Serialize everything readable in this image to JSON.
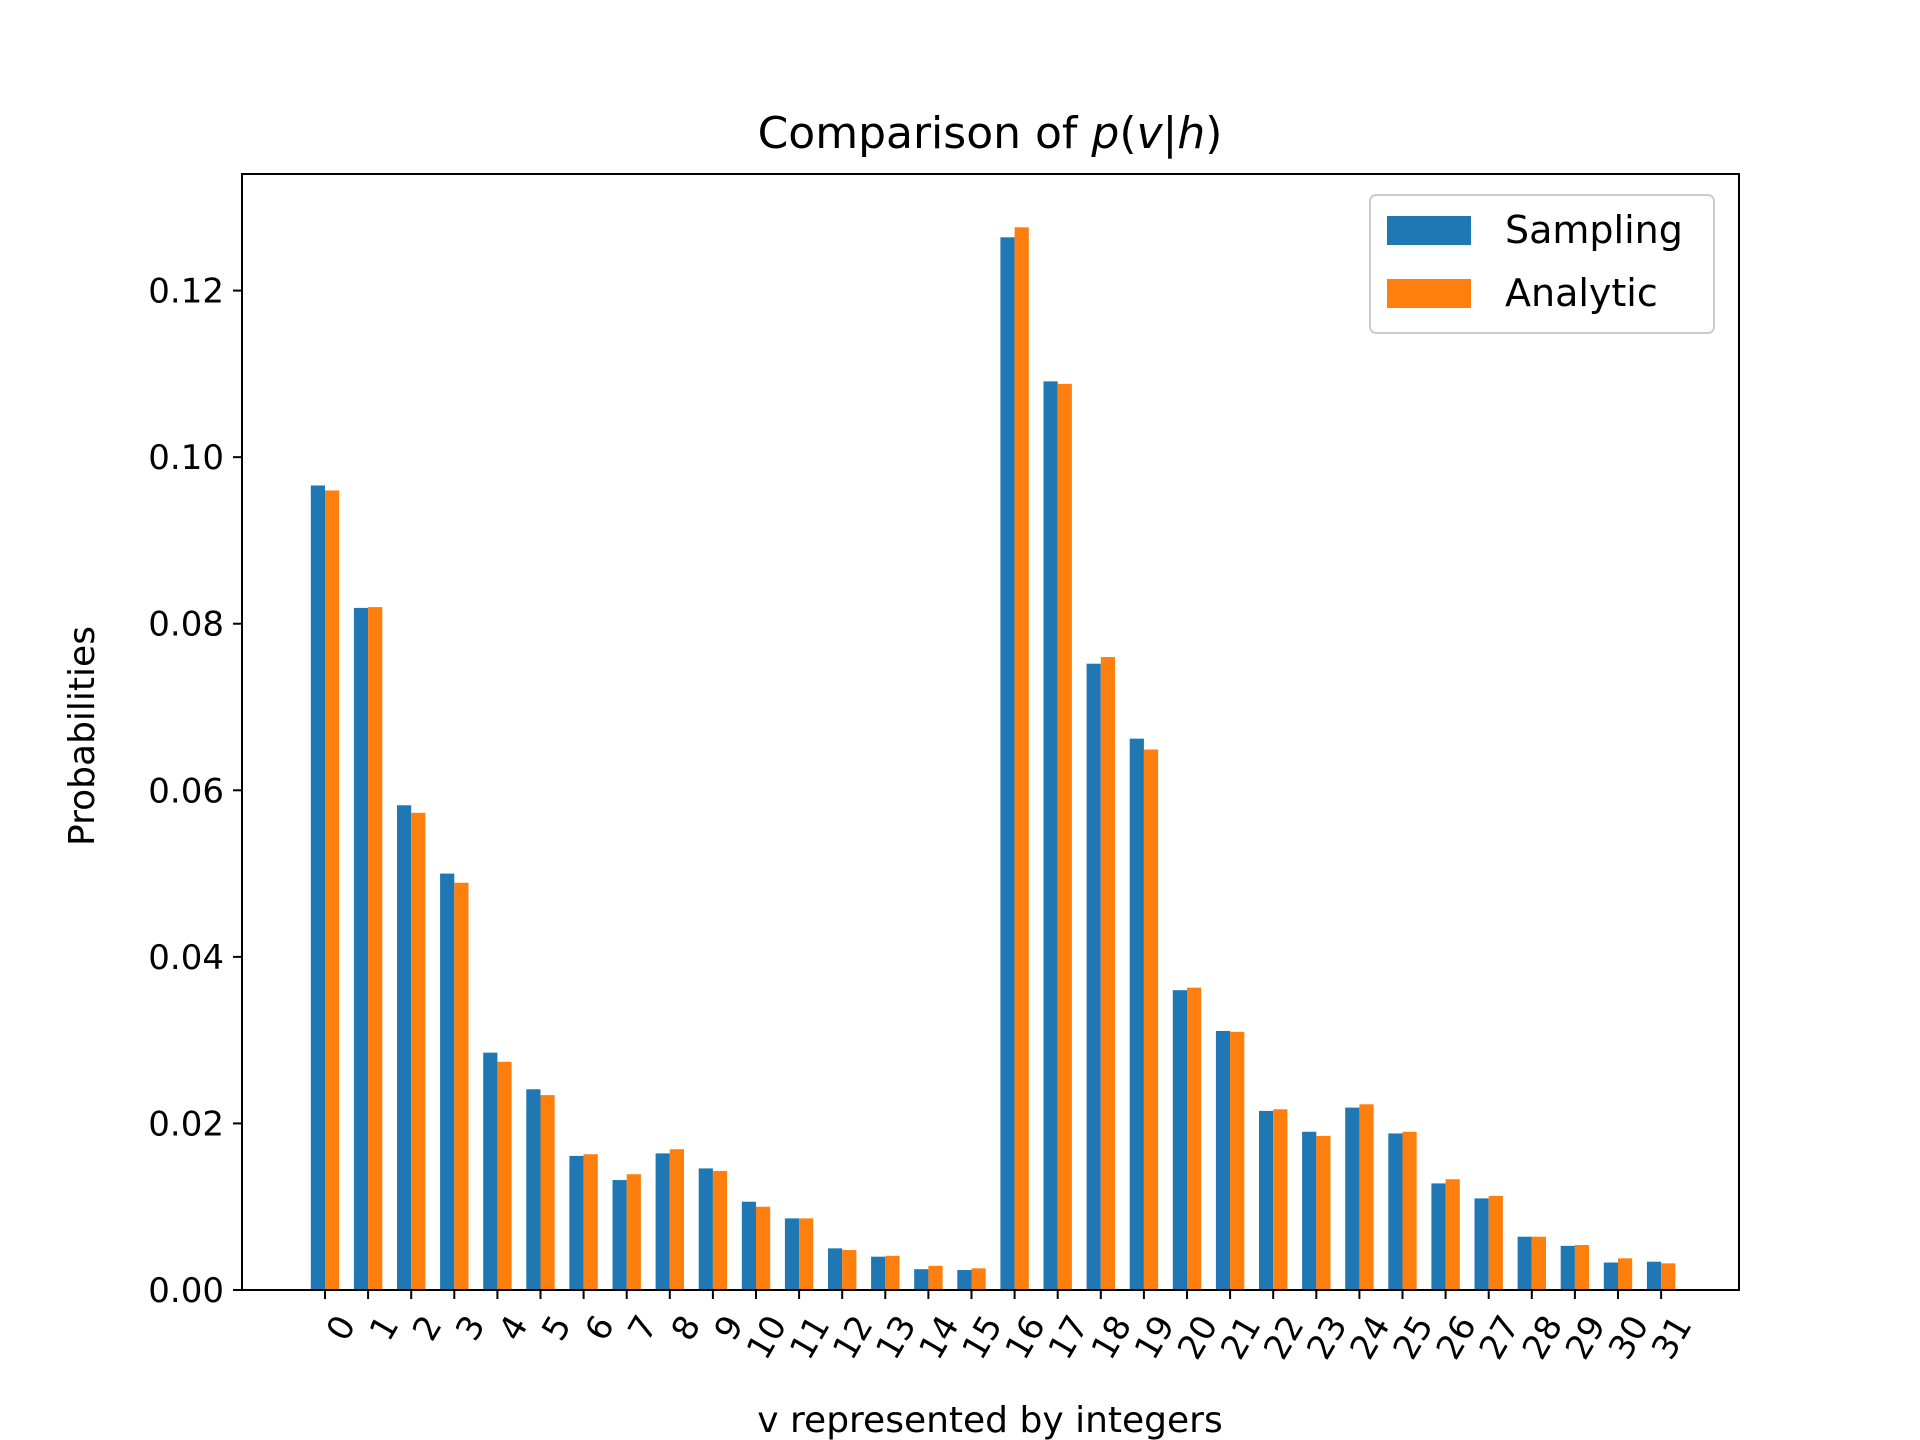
{
  "chart_data": {
    "type": "bar",
    "title": "Comparison of p(v|h)",
    "title_parts": {
      "prefix": "Comparison of ",
      "p": "p",
      "open": "(",
      "v": "v",
      "bar": "|",
      "h": "h",
      "close": ")"
    },
    "xlabel": "v represented by integers",
    "ylabel": "Probabilities",
    "ylim": [
      0,
      0.134
    ],
    "yticks": [
      "0.00",
      "0.02",
      "0.04",
      "0.06",
      "0.08",
      "0.10",
      "0.12"
    ],
    "ytick_values": [
      0,
      0.02,
      0.04,
      0.06,
      0.08,
      0.1,
      0.12
    ],
    "categories": [
      "0",
      "1",
      "2",
      "3",
      "4",
      "5",
      "6",
      "7",
      "8",
      "9",
      "10",
      "11",
      "12",
      "13",
      "14",
      "15",
      "16",
      "17",
      "18",
      "19",
      "20",
      "21",
      "22",
      "23",
      "24",
      "25",
      "26",
      "27",
      "28",
      "29",
      "30",
      "31"
    ],
    "grid": false,
    "legend_position": "top-right",
    "series": [
      {
        "name": "Sampling",
        "color": "#1f77b4",
        "values": [
          0.0966,
          0.0819,
          0.0582,
          0.05,
          0.0285,
          0.0241,
          0.0161,
          0.0132,
          0.0164,
          0.0146,
          0.0106,
          0.0086,
          0.005,
          0.004,
          0.0025,
          0.0024,
          0.1264,
          0.1091,
          0.0752,
          0.0662,
          0.036,
          0.0311,
          0.0215,
          0.019,
          0.0219,
          0.0188,
          0.0128,
          0.011,
          0.0064,
          0.0053,
          0.0033,
          0.0034
        ]
      },
      {
        "name": "Analytic",
        "color": "#ff7f0e",
        "values": [
          0.096,
          0.082,
          0.0573,
          0.0489,
          0.0274,
          0.0234,
          0.0163,
          0.0139,
          0.0169,
          0.0143,
          0.01,
          0.0086,
          0.0048,
          0.0041,
          0.0029,
          0.0026,
          0.1276,
          0.1088,
          0.076,
          0.0649,
          0.0363,
          0.031,
          0.0217,
          0.0185,
          0.0223,
          0.019,
          0.0133,
          0.0113,
          0.0064,
          0.0054,
          0.0038,
          0.0032
        ]
      }
    ]
  }
}
